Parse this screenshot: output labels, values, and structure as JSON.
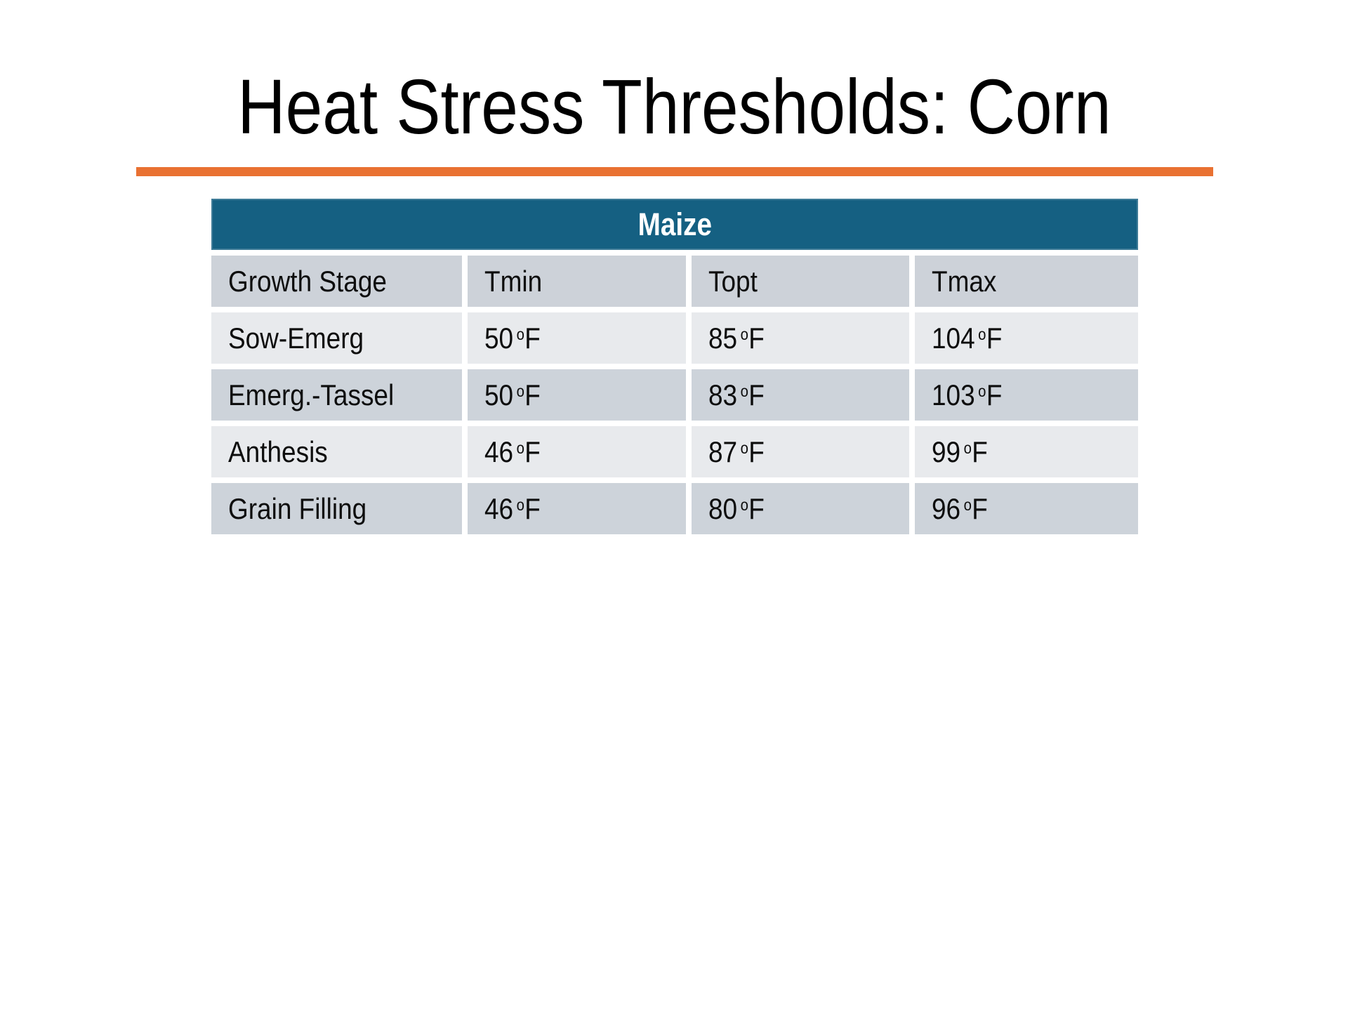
{
  "slide": {
    "title": "Heat Stress Thresholds: Corn",
    "accent_rule_color": "#E97132",
    "background_color": "#FFFFFF"
  },
  "table": {
    "title": "Maize",
    "title_bg_color": "#156082",
    "title_text_color": "#FFFFFF",
    "header_row_color": "#CDD2D9",
    "band_light_color": "#E8EAED",
    "band_dark_color": "#CDD3DA",
    "columns": [
      "Growth Stage",
      "Tmin",
      "Topt",
      "Tmax"
    ],
    "deg": "o",
    "unit": "F",
    "rows": [
      {
        "stage": "Sow-Emerg",
        "tmin": "50",
        "topt": "85",
        "tmax": "104"
      },
      {
        "stage": "Emerg.-Tassel",
        "tmin": "50",
        "topt": "83",
        "tmax": "103"
      },
      {
        "stage": "Anthesis",
        "tmin": "46",
        "topt": "87",
        "tmax": "99"
      },
      {
        "stage": "Grain Filling",
        "tmin": "46",
        "topt": "80",
        "tmax": "96"
      }
    ]
  }
}
